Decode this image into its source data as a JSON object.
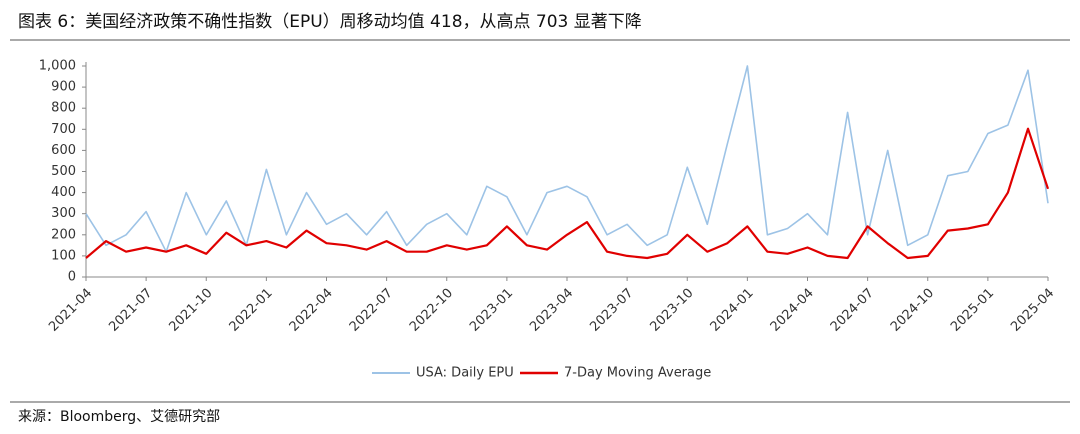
{
  "header": {
    "title": "图表 6：美国经济政策不确性指数（EPU）周移动均值 418，从高点 703 显著下降"
  },
  "chart_data": {
    "type": "line",
    "x": [
      "2021-04",
      "2021-05",
      "2021-06",
      "2021-07",
      "2021-08",
      "2021-09",
      "2021-10",
      "2021-11",
      "2021-12",
      "2022-01",
      "2022-02",
      "2022-03",
      "2022-04",
      "2022-05",
      "2022-06",
      "2022-07",
      "2022-08",
      "2022-09",
      "2022-10",
      "2022-11",
      "2022-12",
      "2023-01",
      "2023-02",
      "2023-03",
      "2023-04",
      "2023-05",
      "2023-06",
      "2023-07",
      "2023-08",
      "2023-09",
      "2023-10",
      "2023-11",
      "2023-12",
      "2024-01",
      "2024-02",
      "2024-03",
      "2024-04",
      "2024-05",
      "2024-06",
      "2024-07",
      "2024-08",
      "2024-09",
      "2024-10",
      "2024-11",
      "2024-12",
      "2025-01",
      "2025-02",
      "2025-03",
      "2025-04"
    ],
    "series": [
      {
        "name": "USA: Daily EPU",
        "color": "#9dc3e6",
        "values": [
          300,
          150,
          200,
          310,
          120,
          400,
          200,
          360,
          150,
          510,
          200,
          400,
          250,
          300,
          200,
          310,
          150,
          250,
          300,
          200,
          430,
          380,
          200,
          400,
          430,
          380,
          200,
          250,
          150,
          200,
          520,
          250,
          630,
          1000,
          200,
          230,
          300,
          200,
          780,
          200,
          600,
          150,
          200,
          480,
          500,
          680,
          720,
          980,
          350
        ]
      },
      {
        "name": "7-Day Moving Average",
        "color": "#e00000",
        "values": [
          90,
          170,
          120,
          140,
          120,
          150,
          110,
          210,
          150,
          170,
          140,
          220,
          160,
          150,
          130,
          170,
          120,
          120,
          150,
          130,
          150,
          240,
          150,
          130,
          200,
          260,
          120,
          100,
          90,
          110,
          200,
          120,
          160,
          240,
          120,
          110,
          140,
          100,
          90,
          240,
          160,
          90,
          100,
          220,
          230,
          250,
          400,
          703,
          418
        ]
      }
    ],
    "xticks": [
      "2021-04",
      "2021-07",
      "2021-10",
      "2022-01",
      "2022-04",
      "2022-07",
      "2022-10",
      "2023-01",
      "2023-04",
      "2023-07",
      "2023-10",
      "2024-01",
      "2024-04",
      "2024-07",
      "2024-10",
      "2025-01",
      "2025-04"
    ],
    "ylim": [
      0,
      1000
    ],
    "yticks": [
      0,
      100,
      200,
      300,
      400,
      500,
      600,
      700,
      800,
      900,
      {
        "value": 1000,
        "label": "1,000"
      }
    ],
    "legend": "bottom"
  },
  "footer": {
    "source": "来源：Bloomberg、艾德研究部"
  }
}
